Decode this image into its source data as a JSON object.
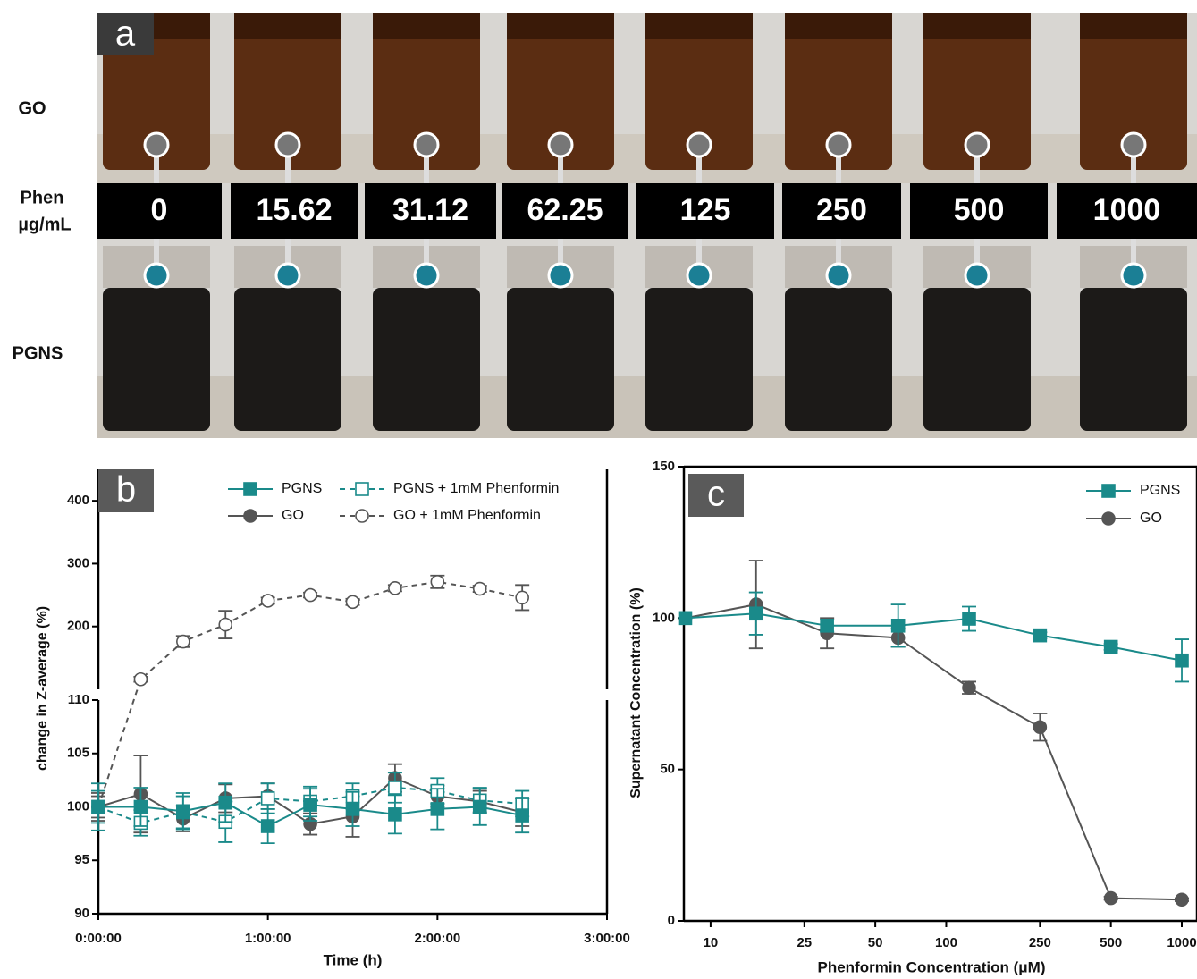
{
  "panel_a": {
    "label": "a",
    "row_labels": [
      "GO",
      "PGNS"
    ],
    "axis_label": [
      "Phen",
      "µg/mL"
    ],
    "concentrations": [
      "0",
      "15.62",
      "31.12",
      "62.25",
      "125",
      "250",
      "500",
      "1000"
    ]
  },
  "chart_data": [
    {
      "type": "line",
      "panel_label": "b",
      "x_label": "Time (h)",
      "y_label": "change in Z-average (%)",
      "x": [
        0,
        0.25,
        0.5,
        0.75,
        1,
        1.25,
        1.5,
        1.75,
        2,
        2.25,
        2.5
      ],
      "xlim": [
        0,
        3
      ],
      "xticks": [
        {
          "value": 0,
          "label": "0:00:00"
        },
        {
          "value": 1,
          "label": "1:00:00"
        },
        {
          "value": 2,
          "label": "2:00:00"
        },
        {
          "value": 3,
          "label": "3:00:00"
        }
      ],
      "y_segments": [
        {
          "ylim": [
            90,
            110
          ],
          "yticks": [
            90,
            95,
            100,
            105,
            110
          ]
        },
        {
          "ylim": [
            100,
            450
          ],
          "yticks": [
            200,
            300,
            400
          ]
        }
      ],
      "legend": "top-right",
      "series": [
        {
          "name": "PGNS",
          "color": "#1a8a8a",
          "dash": false,
          "marker": "square",
          "filled": true,
          "values": [
            100,
            100,
            99.6,
            100.4,
            98.2,
            100.2,
            99.8,
            99.3,
            99.8,
            100,
            99.2
          ],
          "errors": [
            2.2,
            1.8,
            1.7,
            1.8,
            1.6,
            1.5,
            1.6,
            1.8,
            1.9,
            1.7,
            1.6
          ]
        },
        {
          "name": "PGNS + 1mM Phenformin",
          "color": "#1a8a8a",
          "dash": true,
          "marker": "square",
          "filled": false,
          "values": [
            100,
            98.5,
            99.5,
            98.6,
            100.8,
            100.5,
            101,
            101.8,
            101.5,
            100.6,
            100.3
          ],
          "errors": [
            1.5,
            1.2,
            1.5,
            1.9,
            1.4,
            1.4,
            1.2,
            1.4,
            1.2,
            1.2,
            1.2
          ]
        },
        {
          "name": "GO",
          "color": "#555555",
          "dash": false,
          "marker": "circle",
          "filled": true,
          "values": [
            100,
            101.2,
            98.9,
            100.8,
            101,
            98.4,
            99.1,
            102.7,
            101,
            100.5,
            99.5
          ],
          "errors": [
            1.3,
            3.6,
            1.2,
            1.3,
            1.2,
            1.0,
            1.9,
            1.3,
            1.0,
            1.0,
            1.3
          ]
        },
        {
          "name": "GO + 1mM Phenformin",
          "color": "#555555",
          "dash": true,
          "marker": "circle",
          "filled": false,
          "values": [
            100,
            116,
            176,
            203,
            241,
            250,
            239,
            261,
            271,
            260,
            246
          ],
          "errors": [
            1,
            4,
            9,
            22,
            5,
            4,
            5,
            5,
            10,
            5,
            20
          ]
        }
      ]
    },
    {
      "type": "line",
      "panel_label": "c",
      "x_label": "Phenformin Concentration (μM)",
      "y_label": "Supernatant Concentration (%)",
      "log_x": true,
      "x": [
        7.8,
        15.6,
        31.2,
        62.5,
        125,
        250,
        500,
        1000
      ],
      "xlim": [
        7.7,
        1160
      ],
      "xticks": [
        10,
        25,
        50,
        100,
        250,
        500,
        1000
      ],
      "ylim": [
        0,
        150
      ],
      "yticks": [
        0,
        50,
        100,
        150
      ],
      "legend": "top-right",
      "series": [
        {
          "name": "PGNS",
          "color": "#1a8a8a",
          "dash": false,
          "marker": "square",
          "filled": true,
          "values": [
            100,
            101.5,
            97.5,
            97.5,
            99.8,
            94.3,
            90.5,
            86
          ],
          "errors": [
            0,
            7,
            2,
            7,
            4,
            1,
            1,
            7
          ]
        },
        {
          "name": "GO",
          "color": "#555555",
          "dash": false,
          "marker": "circle",
          "filled": true,
          "values": [
            100,
            104.5,
            95,
            93.5,
            77,
            64,
            7.5,
            7
          ],
          "errors": [
            0,
            14.5,
            5,
            3,
            2,
            4.5,
            0.5,
            0.5
          ]
        }
      ]
    }
  ]
}
